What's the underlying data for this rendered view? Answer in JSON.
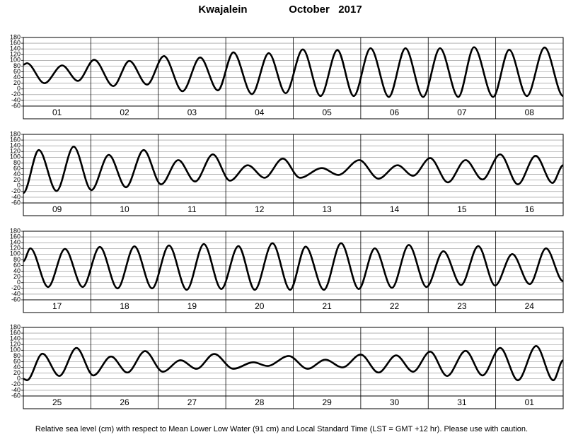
{
  "title": "Kwajalein",
  "month": "October   2017",
  "footnote": "Relative sea level (cm) with respect to Mean Lower Low Water (91 cm) and Local Standard Time (LST = GMT +12 hr). Please use with caution.",
  "chart_data": [
    {
      "type": "line",
      "color": "#000000",
      "grid": true,
      "categories": [
        "01",
        "02",
        "03",
        "04",
        "05",
        "06",
        "07",
        "08"
      ],
      "xlim": [
        0,
        192
      ],
      "ylim": [
        -60,
        180
      ],
      "yticks": [
        -60,
        -40,
        -20,
        0,
        20,
        40,
        60,
        80,
        100,
        120,
        140,
        160,
        180
      ],
      "x": [
        0,
        1.3,
        7.5,
        13.8,
        19.4,
        25.2,
        32,
        37.7,
        44,
        50,
        56.6,
        62.9,
        69.2,
        74.7,
        81.3,
        87.3,
        93.3,
        99.4,
        105.7,
        111.7,
        117.5,
        123.5,
        130,
        135.9,
        142.2,
        148.2,
        154.7,
        160.3,
        167.1,
        172.8,
        179.1,
        185.4,
        192
      ],
      "values": [
        85,
        90,
        20,
        82,
        28,
        102,
        10,
        98,
        15,
        115,
        -8,
        110,
        -5,
        128,
        -18,
        125,
        -15,
        138,
        -25,
        136,
        -25,
        142,
        -28,
        142,
        -28,
        142,
        -28,
        146,
        -28,
        137,
        -25,
        145,
        -25
      ]
    },
    {
      "type": "line",
      "color": "#000000",
      "grid": true,
      "categories": [
        "09",
        "10",
        "11",
        "12",
        "13",
        "14",
        "15",
        "16"
      ],
      "xlim": [
        0,
        192
      ],
      "ylim": [
        -60,
        180
      ],
      "yticks": [
        -60,
        -40,
        -20,
        0,
        20,
        40,
        60,
        80,
        100,
        120,
        140,
        160,
        180
      ],
      "x": [
        0,
        5.5,
        11.8,
        17.9,
        24.2,
        30.4,
        36.5,
        42.8,
        49,
        55.1,
        61.1,
        67.4,
        73.5,
        79.8,
        85.8,
        92.3,
        98.4,
        106.2,
        112,
        119.5,
        126.3,
        133.1,
        138.6,
        144.7,
        151,
        157.3,
        163.3,
        169.6,
        175.9,
        182.2,
        188.2,
        192
      ],
      "values": [
        -25,
        125,
        -18,
        137,
        -15,
        108,
        -5,
        125,
        5,
        90,
        15,
        110,
        18,
        72,
        28,
        95,
        28,
        62,
        38,
        90,
        25,
        72,
        35,
        97,
        12,
        90,
        22,
        110,
        5,
        105,
        10,
        72
      ]
    },
    {
      "type": "line",
      "color": "#000000",
      "grid": true,
      "categories": [
        "17",
        "18",
        "19",
        "20",
        "21",
        "22",
        "23",
        "24"
      ],
      "xlim": [
        0,
        192
      ],
      "ylim": [
        -60,
        180
      ],
      "yticks": [
        -60,
        -40,
        -20,
        0,
        20,
        40,
        60,
        80,
        100,
        120,
        140,
        160,
        180
      ],
      "x": [
        0,
        2.5,
        8.8,
        14.8,
        21.1,
        27.2,
        33.5,
        39.5,
        45.8,
        51.8,
        58.1,
        64.2,
        70.4,
        76.5,
        82.3,
        88.6,
        94.9,
        100.4,
        106.9,
        113,
        119.3,
        125,
        131.1,
        137.1,
        143.4,
        149.4,
        155.7,
        161.8,
        167.8,
        173.9,
        180.1,
        185.9,
        192
      ],
      "values": [
        75,
        120,
        -15,
        118,
        -15,
        125,
        -20,
        127,
        -20,
        130,
        -25,
        135,
        -22,
        128,
        -25,
        138,
        -25,
        126,
        -25,
        138,
        -22,
        120,
        -18,
        132,
        -15,
        110,
        -8,
        128,
        -10,
        100,
        -5,
        120,
        5
      ]
    },
    {
      "type": "line",
      "color": "#000000",
      "grid": true,
      "categories": [
        "25",
        "26",
        "27",
        "28",
        "29",
        "30",
        "31",
        "01"
      ],
      "xlim": [
        0,
        192
      ],
      "ylim": [
        -60,
        180
      ],
      "yticks": [
        -60,
        -40,
        -20,
        0,
        20,
        40,
        60,
        80,
        100,
        120,
        140,
        160,
        180
      ],
      "x": [
        0,
        1.3,
        6.8,
        12.8,
        18.9,
        24.9,
        31.2,
        37,
        43.3,
        49.6,
        55.9,
        61.6,
        67.9,
        74.7,
        81.8,
        86.8,
        94.4,
        101.1,
        107.4,
        113.5,
        120,
        126.3,
        132.6,
        138.6,
        144.7,
        150.7,
        157.3,
        163.3,
        169.6,
        175.9,
        182.4,
        188.5,
        192
      ],
      "values": [
        0,
        -5,
        88,
        10,
        108,
        12,
        78,
        22,
        97,
        25,
        65,
        35,
        87,
        35,
        58,
        45,
        80,
        35,
        67,
        40,
        85,
        22,
        82,
        25,
        95,
        10,
        98,
        12,
        108,
        -5,
        115,
        -5,
        65
      ]
    }
  ]
}
